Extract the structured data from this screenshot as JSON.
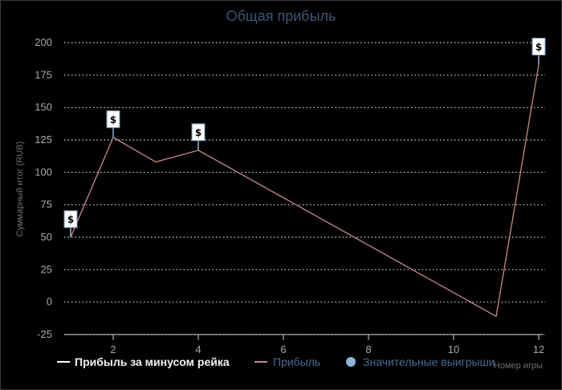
{
  "chart_data": {
    "type": "line",
    "title": "Общая прибыль",
    "xlabel": "Номер игры",
    "ylabel": "Суммарный итог (RUB)",
    "xlim": [
      1,
      12
    ],
    "ylim": [
      -25,
      200
    ],
    "x_ticks": [
      2,
      4,
      6,
      8,
      10,
      12
    ],
    "y_ticks": [
      -25,
      0,
      25,
      50,
      75,
      100,
      125,
      150,
      175,
      200
    ],
    "grid": true,
    "legend_position": "bottom",
    "series": [
      {
        "name": "Прибыль за минусом рейка",
        "color": "#ffffff",
        "x": [],
        "values": []
      },
      {
        "name": "Прибыль",
        "color": "#c98b8b",
        "x": [
          1,
          2,
          3,
          4,
          11,
          12
        ],
        "values": [
          50,
          127,
          108,
          117,
          -11,
          183
        ]
      }
    ],
    "markers": {
      "name": "Значительные выигрыши",
      "color": "#8fb4e0",
      "symbol": "$",
      "points": [
        {
          "x": 1,
          "y": 50
        },
        {
          "x": 2,
          "y": 127
        },
        {
          "x": 4,
          "y": 117
        },
        {
          "x": 12,
          "y": 183
        }
      ]
    }
  }
}
